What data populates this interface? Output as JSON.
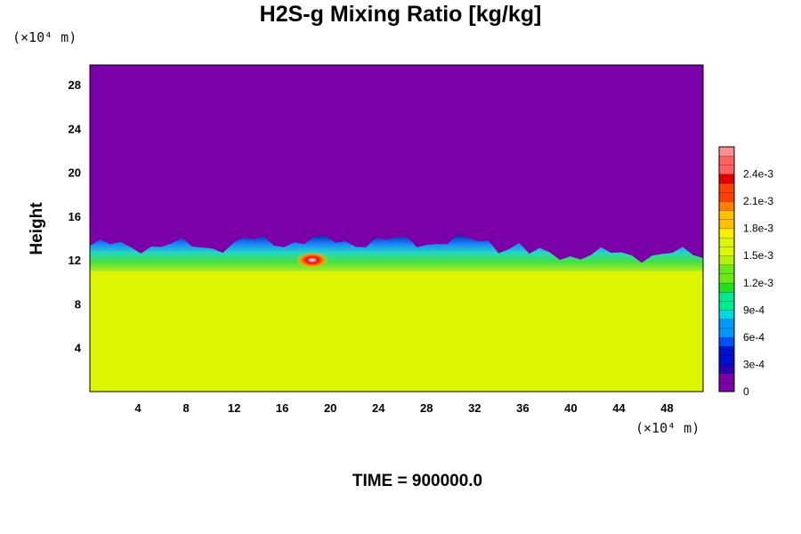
{
  "chart_data": {
    "type": "heatmap",
    "title": "H2S-g Mixing Ratio [kg/kg]",
    "ylabel": "Height",
    "x_unit": "(×10⁴ m)",
    "y_unit": "(×10⁴ m)",
    "xlim": [
      0,
      51
    ],
    "ylim": [
      0,
      29.8
    ],
    "x_ticks": [
      4,
      8,
      12,
      16,
      20,
      24,
      28,
      32,
      36,
      40,
      44,
      48
    ],
    "y_ticks": [
      4,
      8,
      12,
      16,
      20,
      24,
      28
    ],
    "colorbar": {
      "range": [
        0,
        0.0027
      ],
      "ticks": [
        {
          "value": 0,
          "label": "0"
        },
        {
          "value": 0.0003,
          "label": "3e-4"
        },
        {
          "value": 0.0006,
          "label": "6e-4"
        },
        {
          "value": 0.0009,
          "label": "9e-4"
        },
        {
          "value": 0.0012,
          "label": "1.2e-3"
        },
        {
          "value": 0.0015,
          "label": "1.5e-3"
        },
        {
          "value": 0.0018,
          "label": "1.8e-3"
        },
        {
          "value": 0.0021,
          "label": "2.1e-3"
        },
        {
          "value": 0.0024,
          "label": "2.4e-3"
        }
      ]
    },
    "regions": [
      {
        "name": "upper-layer",
        "value": 0.0,
        "y_range": [
          13.5,
          29.8
        ]
      },
      {
        "name": "lower-layer",
        "value": 0.00175,
        "y_range": [
          0,
          11
        ]
      },
      {
        "name": "mixing-band",
        "value": 0.0012,
        "y_range": [
          11,
          13.5
        ]
      },
      {
        "name": "peak",
        "value": 0.0025,
        "x": 18.5,
        "y": 12
      }
    ],
    "colors": {
      "upper": "#7a00a8",
      "lower": "#dcf500",
      "band_mid": "#2ee060",
      "band_edge": "#0040ff",
      "peak": "#e01010"
    }
  },
  "footer": {
    "time_label": "TIME = 900000.0"
  }
}
